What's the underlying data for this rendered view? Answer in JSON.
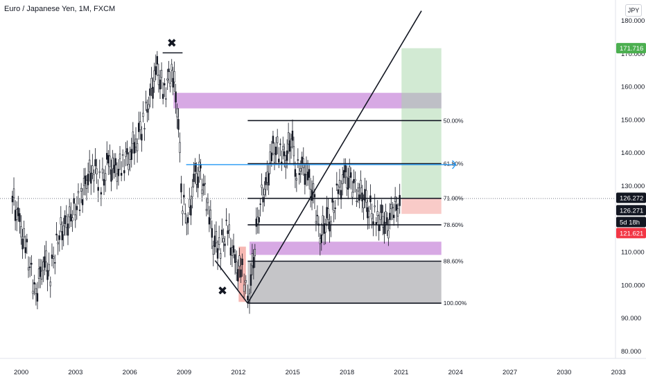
{
  "title": "Euro / Japanese Yen, 1M, FXCM",
  "currency_button": "JPY",
  "colors": {
    "candle": "#131722",
    "purple_zone": "#c27bd6",
    "green_zone": "#a5d6a7",
    "red_zone": "#f4a09a",
    "gray_zone": "#9e9fa3",
    "blue_line": "#2196f3",
    "price_tag": "#131722",
    "target_tag": "#4caf50",
    "stop_tag": "#f23645"
  },
  "price_labels": {
    "current": "126.272",
    "current_second": "126.271",
    "countdown": "5d 18h",
    "target": "171.716",
    "stop": "121.621"
  },
  "chart_data": {
    "type": "candlestick",
    "title": "Euro / Japanese Yen, 1M, FXCM",
    "x_ticks": [
      "2000",
      "2003",
      "2006",
      "2009",
      "2012",
      "2015",
      "2018",
      "2021",
      "2024",
      "2027",
      "2030",
      "2033"
    ],
    "y_ticks": [
      "80.000",
      "90.000",
      "100.000",
      "110.000",
      "120.000",
      "130.000",
      "140.000",
      "150.000",
      "160.000",
      "170.000",
      "180.000"
    ],
    "ylim": [
      76,
      183
    ],
    "xlim": [
      1999.4,
      2033.6
    ],
    "series": [
      {
        "values": [
          [
            1999.5,
            127
          ],
          [
            1999.9,
            118
          ],
          [
            2000.3,
            110
          ],
          [
            2000.8,
            97
          ],
          [
            2001.2,
            108
          ],
          [
            2001.6,
            104
          ],
          [
            2002.1,
            116
          ],
          [
            2002.4,
            118
          ],
          [
            2002.9,
            122
          ],
          [
            2003.3,
            127
          ],
          [
            2003.6,
            132
          ],
          [
            2004.0,
            136
          ],
          [
            2004.4,
            130
          ],
          [
            2004.8,
            137
          ],
          [
            2005.2,
            134
          ],
          [
            2005.6,
            137
          ],
          [
            2006.0,
            140
          ],
          [
            2006.4,
            145
          ],
          [
            2006.8,
            150
          ],
          [
            2007.1,
            158
          ],
          [
            2007.5,
            165
          ],
          [
            2007.9,
            158
          ],
          [
            2008.3,
            166
          ],
          [
            2008.6,
            155
          ],
          [
            2008.9,
            125
          ],
          [
            2009.2,
            120
          ],
          [
            2009.6,
            133
          ],
          [
            2009.9,
            133
          ],
          [
            2010.3,
            125
          ],
          [
            2010.6,
            113
          ],
          [
            2011.0,
            112
          ],
          [
            2011.4,
            117
          ],
          [
            2011.8,
            106
          ],
          [
            2012.2,
            104
          ],
          [
            2012.4,
            100
          ],
          [
            2012.6,
            98
          ],
          [
            2012.9,
            113
          ],
          [
            2013.2,
            126
          ],
          [
            2013.5,
            130
          ],
          [
            2013.9,
            141
          ],
          [
            2014.3,
            141
          ],
          [
            2014.6,
            138
          ],
          [
            2014.9,
            146
          ],
          [
            2015.2,
            134
          ],
          [
            2015.5,
            137
          ],
          [
            2015.9,
            131
          ],
          [
            2016.2,
            125
          ],
          [
            2016.5,
            114
          ],
          [
            2016.8,
            120
          ],
          [
            2017.1,
            121
          ],
          [
            2017.5,
            128
          ],
          [
            2017.9,
            133
          ],
          [
            2018.2,
            131
          ],
          [
            2018.6,
            129
          ],
          [
            2018.9,
            127
          ],
          [
            2019.2,
            124
          ],
          [
            2019.6,
            119
          ],
          [
            2019.9,
            121
          ],
          [
            2020.2,
            117
          ],
          [
            2020.5,
            123
          ],
          [
            2020.8,
            124
          ],
          [
            2021.0,
            126.3
          ]
        ]
      }
    ],
    "fib_levels": [
      {
        "label": "50.00%",
        "price": 149.8
      },
      {
        "label": "61.80%",
        "price": 136.8
      },
      {
        "label": "71.00%",
        "price": 126.3
      },
      {
        "label": "78.60%",
        "price": 118.3
      },
      {
        "label": "88.60%",
        "price": 107.3
      },
      {
        "label": "100.00%",
        "price": 94.6
      }
    ],
    "fib_x_range": [
      2012.5,
      2023.2
    ],
    "zones": [
      {
        "name": "purple-zone-upper",
        "x": [
          2008.4,
          2023.2
        ],
        "y": [
          153.5,
          158.2
        ]
      },
      {
        "name": "purple-zone-lower",
        "x": [
          2012.6,
          2023.2
        ],
        "y": [
          109.2,
          113.2
        ]
      },
      {
        "name": "gray-zone",
        "x": [
          2012.5,
          2023.2
        ],
        "y": [
          94.6,
          107.3
        ]
      },
      {
        "name": "green-target-zone",
        "x": [
          2021.0,
          2023.2
        ],
        "y": [
          126.3,
          171.7
        ]
      },
      {
        "name": "red-stop-zone",
        "x": [
          2021.0,
          2023.2
        ],
        "y": [
          121.6,
          126.3
        ]
      },
      {
        "name": "red-entry-zone",
        "x": [
          2012.0,
          2012.4
        ],
        "y": [
          95,
          111.7
        ]
      }
    ],
    "lines": [
      {
        "name": "blue-horizontal-line",
        "from": [
          2009.1,
          136.5
        ],
        "to": [
          2024.0,
          136.5
        ]
      },
      {
        "name": "trend-line-up",
        "from": [
          2012.5,
          94.6
        ],
        "to": [
          2022.1,
          183
        ]
      },
      {
        "name": "wedge-line-lower",
        "from": [
          2010.7,
          107.5
        ],
        "to": [
          2012.5,
          94.6
        ]
      },
      {
        "name": "top-line",
        "from": [
          2007.8,
          170.3
        ],
        "to": [
          2008.9,
          170.3
        ]
      }
    ],
    "markers": [
      {
        "name": "x-mark-top",
        "at": [
          2008.3,
          173.5
        ]
      },
      {
        "name": "x-mark-bottom",
        "at": [
          2011.1,
          98.6
        ]
      }
    ],
    "current_price": 126.272,
    "target_price": 171.716,
    "stop_price": 121.621
  }
}
